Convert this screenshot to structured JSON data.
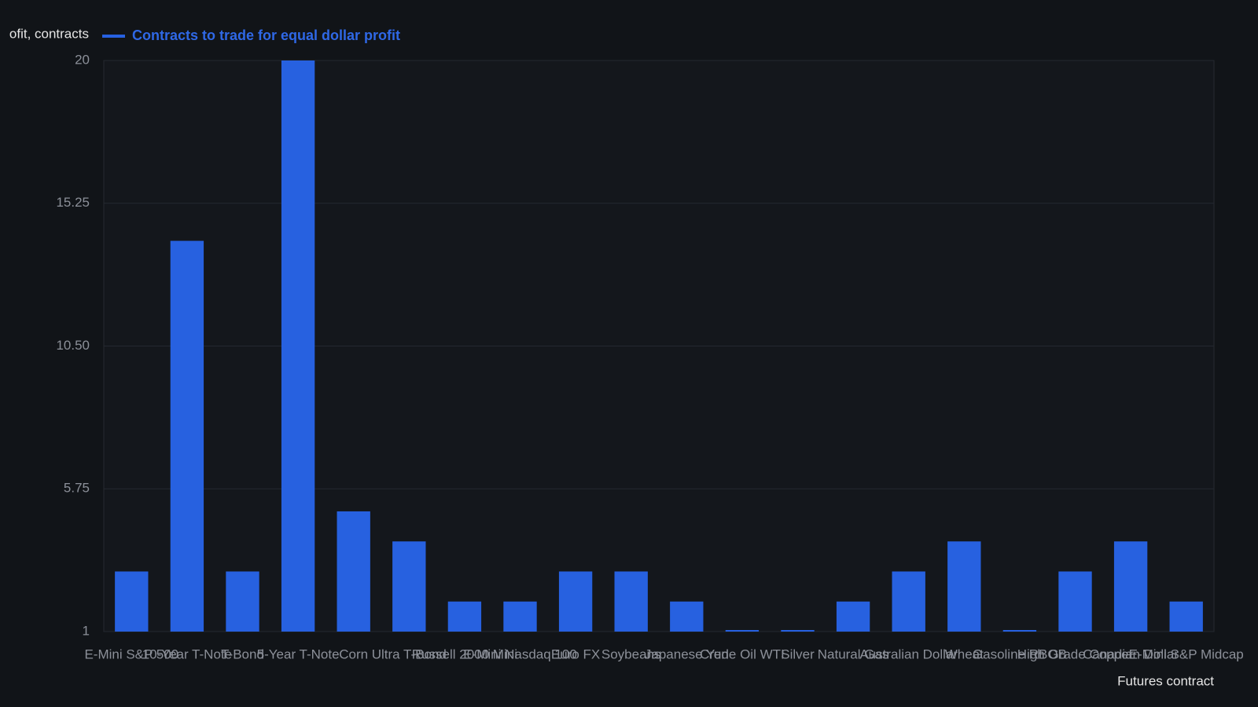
{
  "chart_data": {
    "type": "bar",
    "y_axis_label": "ofit, contracts",
    "x_axis_label": "Futures contract",
    "categories": [
      "E-Mini S&P 500",
      "10-Year T-Note",
      "T-Bond",
      "5-Year T-Note",
      "Corn",
      "Ultra T-Bond",
      "Russell 2000 Mini",
      "E-Mini Nasdaq 100",
      "Euro FX",
      "Soybeans",
      "Japanese Yen",
      "Crude Oil WTI",
      "Silver",
      "Natural Gas",
      "Australian Dollar",
      "Wheat",
      "Gasoline RBOB",
      "High Grade Copper",
      "Canadian Dollar",
      "E-Mini S&P Midcap"
    ],
    "series": [
      {
        "name": "Contracts to trade for equal dollar profit",
        "color": "#2761e0",
        "values": [
          3,
          14,
          3,
          20,
          5,
          4,
          2,
          2,
          3,
          3,
          2,
          1,
          1,
          2,
          3,
          4,
          1,
          3,
          4,
          2
        ]
      }
    ],
    "ylim": [
      1,
      20
    ],
    "yticks": [
      1,
      5.75,
      {
        "value": 10.5,
        "label": "10.50"
      },
      15.25,
      20
    ],
    "grid": true
  }
}
